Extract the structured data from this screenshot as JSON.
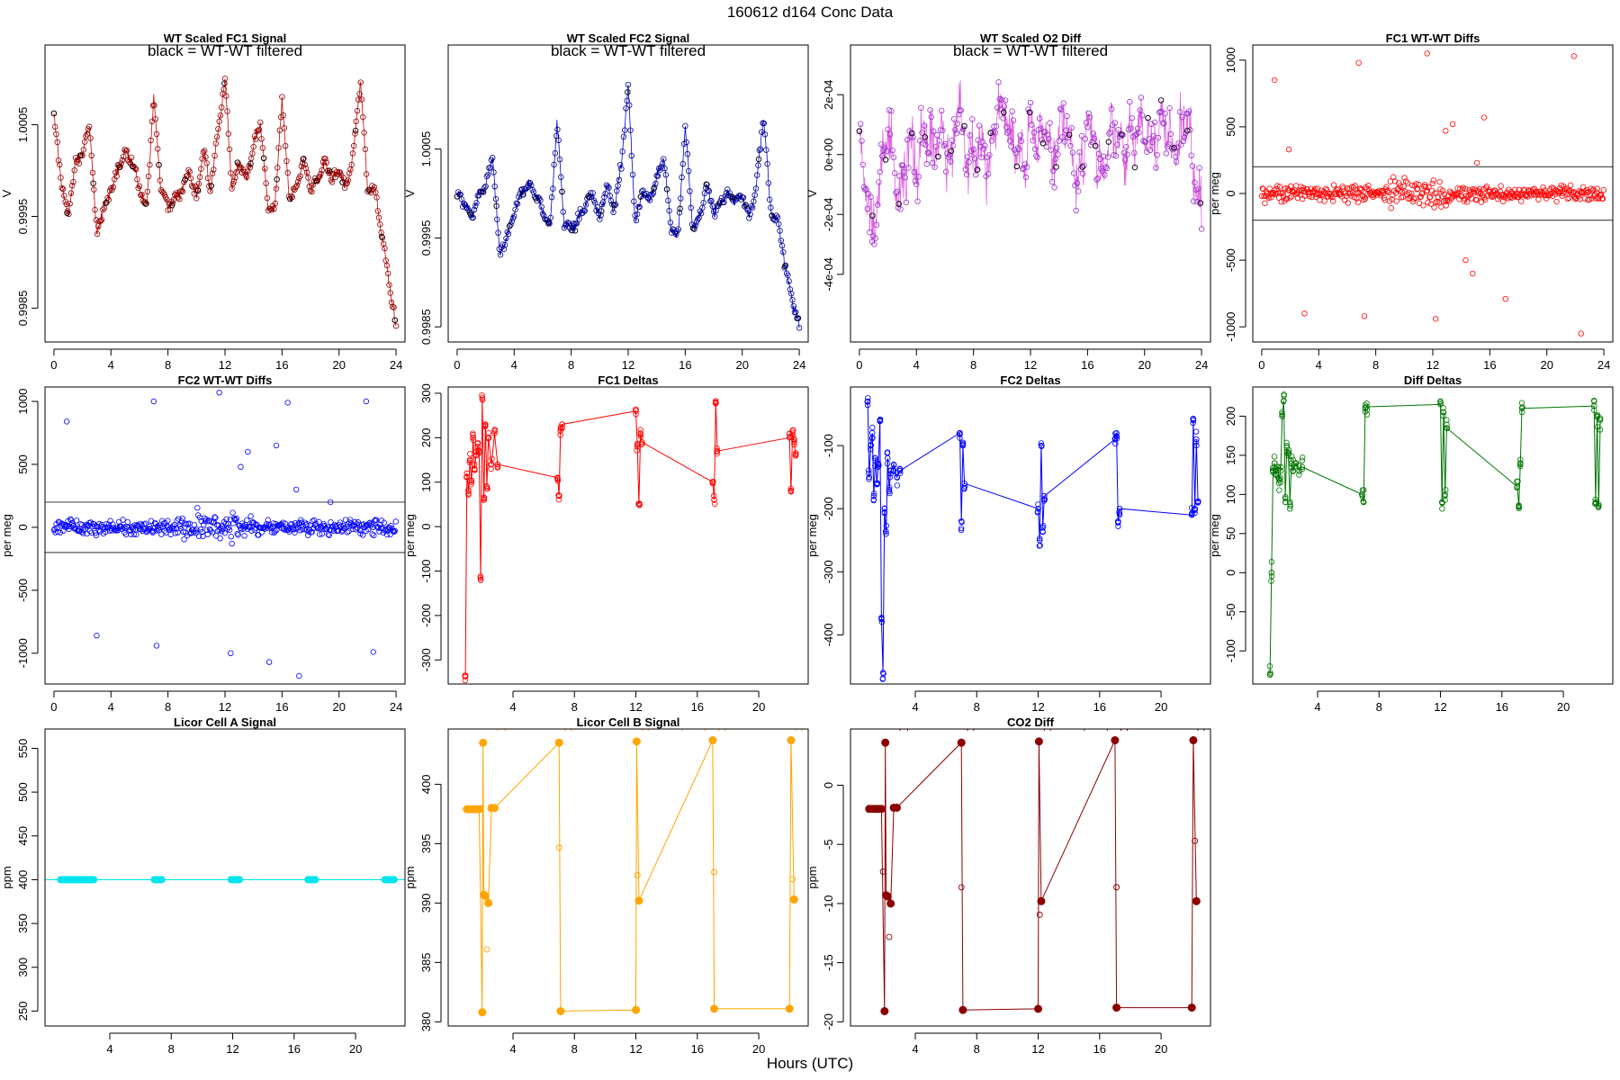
{
  "figure": {
    "title": "160612    d164    Conc Data",
    "xlabel": "Hours (UTC)"
  },
  "chart_data": [
    {
      "type": "line",
      "title": "WT Scaled FC1 Signal",
      "annotation": "black = WT-WT filtered",
      "xlabel": "",
      "ylabel": "V",
      "xlim": [
        -0.5,
        24.5
      ],
      "ylim": [
        0.99815,
        1.00135
      ],
      "xticks": [
        0,
        4,
        8,
        12,
        16,
        20,
        24
      ],
      "yticks": [
        0.9985,
        0.9995,
        1.0005
      ],
      "ytick_labels": [
        "0.9985",
        "0.9995",
        "1.0005"
      ],
      "color": "#cc0000",
      "marker_color": "#8b0000",
      "series": [
        {
          "name": "FC1 signal",
          "x": [
            0,
            0.5,
            1,
            1.5,
            2,
            2.5,
            3,
            3.5,
            4,
            4.5,
            5,
            5.5,
            6,
            6.5,
            7,
            7.5,
            8,
            8.5,
            9,
            9.5,
            10,
            10.5,
            11,
            11.5,
            12,
            12.5,
            13,
            13.5,
            14,
            14.5,
            15,
            15.5,
            16,
            16.5,
            17,
            17.5,
            18,
            18.5,
            19,
            19.5,
            20,
            20.5,
            21,
            21.5,
            22,
            22.5,
            23,
            23.5,
            24
          ],
          "values": [
            1.0006,
            0.9999,
            0.9995,
            1.0001,
            1.0002,
            1.0005,
            0.9993,
            0.9996,
            0.9998,
            1.0,
            1.0002,
            1.0001,
            0.9998,
            0.9996,
            1.0008,
            0.9998,
            0.9996,
            0.9997,
            0.9998,
            1.0,
            0.9997,
            1.0002,
            0.9998,
            1.0004,
            1.001,
            0.9998,
            1.0001,
            0.9999,
            1.0003,
            1.0005,
            0.9996,
            0.9996,
            1.0008,
            0.9997,
            0.9998,
            1.0001,
            0.9998,
            0.9999,
            1.0001,
            0.9999,
            1.0,
            0.9998,
            1.0002,
            1.001,
            0.9998,
            0.9998,
            0.9993,
            0.9988,
            0.9983
          ]
        }
      ]
    },
    {
      "type": "line",
      "title": "WT Scaled FC2 Signal",
      "annotation": "black = WT-WT filtered",
      "xlabel": "",
      "ylabel": "V",
      "xlim": [
        -0.5,
        24.5
      ],
      "ylim": [
        0.99835,
        1.00165
      ],
      "xticks": [
        0,
        4,
        8,
        12,
        16,
        20,
        24
      ],
      "yticks": [
        0.9985,
        0.9995,
        1.0005
      ],
      "ytick_labels": [
        "0.9985",
        "0.9995",
        "1.0005"
      ],
      "color": "#0000cc",
      "marker_color": "#00008b",
      "series": [
        {
          "name": "FC2 signal",
          "x": [
            0,
            0.5,
            1,
            1.5,
            2,
            2.5,
            3,
            3.5,
            4,
            4.5,
            5,
            5.5,
            6,
            6.5,
            7,
            7.5,
            8,
            8.5,
            9,
            9.5,
            10,
            10.5,
            11,
            11.5,
            12,
            12.5,
            13,
            13.5,
            14,
            14.5,
            15,
            15.5,
            16,
            16.5,
            17,
            17.5,
            18,
            18.5,
            19,
            19.5,
            20,
            20.5,
            21,
            21.5,
            22,
            22.5,
            23,
            23.5,
            24
          ],
          "values": [
            1.0,
            0.9999,
            0.9997,
            1.0,
            1.0001,
            1.0004,
            0.9993,
            0.9995,
            0.9998,
            1.0,
            1.0001,
            1.0,
            0.9998,
            0.9996,
            1.0008,
            0.9997,
            0.9996,
            0.9997,
            0.9999,
            1.0,
            0.9997,
            1.0001,
            0.9998,
            1.0003,
            1.0012,
            0.9997,
            1.0,
            0.9999,
            1.0002,
            1.0004,
            0.9996,
            0.9995,
            1.0008,
            0.9996,
            0.9997,
            1.0001,
            0.9998,
            0.9999,
            1.0,
            0.9999,
            1.0,
            0.9997,
            1.0001,
            1.0009,
            0.9998,
            0.9997,
            0.9992,
            0.9988,
            0.9985
          ]
        }
      ]
    },
    {
      "type": "line",
      "title": "WT Scaled O2 Diff",
      "annotation": "black = WT-WT filtered",
      "xlabel": "",
      "ylabel": "V",
      "xlim": [
        -0.5,
        24.5
      ],
      "ylim": [
        -0.00062,
        0.00036
      ],
      "xticks": [
        0,
        4,
        8,
        12,
        16,
        20,
        24
      ],
      "yticks": [
        -0.0004,
        -0.0002,
        0,
        0.0002
      ],
      "ytick_labels": [
        "-4e-04",
        "-2e-04",
        "0e+00",
        "2e-04"
      ],
      "color": "#e066e0",
      "marker_color": "#9932cc",
      "series": [
        {
          "name": "O2 diff",
          "x": [
            0,
            0.5,
            1,
            1.5,
            2,
            2.5,
            3,
            3.5,
            4,
            4.5,
            5,
            5.5,
            6,
            6.5,
            7,
            7.5,
            8,
            8.5,
            9,
            9.5,
            10,
            10.5,
            11,
            11.5,
            12,
            12.5,
            13,
            13.5,
            14,
            14.5,
            15,
            15.5,
            16,
            16.5,
            17,
            17.5,
            18,
            18.5,
            19,
            19.5,
            20,
            20.5,
            21,
            21.5,
            22,
            22.5,
            23,
            23.5,
            24
          ],
          "values": [
            5e-05,
            -0.00015,
            -0.00025,
            -5e-05,
            0.00012,
            -0.0001,
            -0.00012,
            5e-05,
            -5e-05,
            8e-05,
            2e-05,
            6e-05,
            3e-05,
            -5e-05,
            0.0002,
            -3e-05,
            0.0,
            5e-05,
            -5e-05,
            0.00012,
            0.00018,
            8e-05,
            2e-05,
            -5e-05,
            8e-05,
            5e-05,
            0.00012,
            -2e-05,
            5e-05,
            0.00015,
            -5e-05,
            -8e-05,
            0.00012,
            2e-05,
            -5e-05,
            5e-05,
            8e-05,
            -2e-05,
            5e-05,
            8e-05,
            0.0001,
            2e-05,
            0.0001,
            0.00012,
            -2e-05,
            5e-05,
            0.00015,
            -8e-05,
            -0.00022
          ]
        }
      ]
    },
    {
      "type": "scatter",
      "title": "FC1 WT-WT Diffs",
      "xlabel": "",
      "ylabel": "per meg",
      "xlim": [
        -0.5,
        24.5
      ],
      "ylim": [
        -1100,
        1100
      ],
      "xticks": [
        0,
        4,
        8,
        12,
        16,
        20,
        24
      ],
      "yticks": [
        -1000,
        -500,
        0,
        500,
        1000
      ],
      "hlines": [
        200,
        -200
      ],
      "color": "#ff0000",
      "band": {
        "amplitude": 90
      },
      "outliers": {
        "x": [
          0.9,
          1.9,
          3,
          6.8,
          7.2,
          11.6,
          12.2,
          12.9,
          13.4,
          14.3,
          14.8,
          15.1,
          15.6,
          17.1,
          21.9,
          22.4
        ],
        "values": [
          850,
          330,
          -900,
          980,
          -920,
          1050,
          -940,
          470,
          520,
          -500,
          -600,
          230,
          570,
          -790,
          1030,
          -1050
        ]
      }
    },
    {
      "type": "scatter",
      "title": "FC2 WT-WT Diffs",
      "xlabel": "",
      "ylabel": "per meg",
      "xlim": [
        -0.5,
        24.5
      ],
      "ylim": [
        -1230,
        1100
      ],
      "xticks": [
        0,
        4,
        8,
        12,
        16,
        20,
        24
      ],
      "yticks": [
        -1000,
        -500,
        0,
        500,
        1000
      ],
      "hlines": [
        200,
        -200
      ],
      "color": "#0000ff",
      "band": {
        "amplitude": 90
      },
      "outliers": {
        "x": [
          0.9,
          3,
          7,
          7.2,
          11.6,
          12.4,
          13.1,
          13.6,
          15.1,
          15.6,
          16.4,
          17,
          17.2,
          19.4,
          21.9,
          22.4
        ],
        "values": [
          840,
          -860,
          1000,
          -940,
          1070,
          -1000,
          480,
          600,
          -1070,
          650,
          990,
          300,
          -1180,
          200,
          1000,
          -990
        ]
      }
    },
    {
      "type": "line",
      "title": "FC1 Deltas",
      "xlabel": "",
      "ylabel": "per meg",
      "xlim": [
        -0.1,
        23.1
      ],
      "ylim": [
        -350,
        310
      ],
      "xticks": [
        4,
        8,
        12,
        16,
        20
      ],
      "yticks": [
        -300,
        -200,
        -100,
        0,
        100,
        200,
        300
      ],
      "color": "#ff0000",
      "series": [
        {
          "name": "FC1 delta",
          "x": [
            0.9,
            1.0,
            1.1,
            1.2,
            1.3,
            1.4,
            1.5,
            1.6,
            1.7,
            1.8,
            1.9,
            2.0,
            2.1,
            2.2,
            2.3,
            2.4,
            2.6,
            2.8,
            3.0,
            6.9,
            7.0,
            7.1,
            7.2,
            12.0,
            12.1,
            12.2,
            12.3,
            12.4,
            17.0,
            17.1,
            17.2,
            17.3,
            22.0,
            22.1,
            22.2,
            22.3,
            22.4
          ],
          "values": [
            -335,
            120,
            80,
            150,
            100,
            200,
            130,
            160,
            180,
            170,
            -120,
            290,
            60,
            230,
            90,
            200,
            140,
            210,
            140,
            110,
            70,
            220,
            230,
            260,
            180,
            50,
            210,
            190,
            100,
            60,
            280,
            170,
            200,
            80,
            210,
            190,
            160
          ]
        }
      ]
    },
    {
      "type": "line",
      "title": "FC2 Deltas",
      "xlabel": "",
      "ylabel": "per meg",
      "xlim": [
        -0.1,
        23.1
      ],
      "ylim": [
        -475,
        -10
      ],
      "xticks": [
        4,
        8,
        12,
        16,
        20
      ],
      "yticks": [
        -400,
        -300,
        -200,
        -100
      ],
      "color": "#0000ff",
      "series": [
        {
          "name": "FC2 delta",
          "x": [
            0.9,
            1.0,
            1.1,
            1.2,
            1.3,
            1.4,
            1.5,
            1.6,
            1.7,
            1.8,
            1.9,
            2.0,
            2.1,
            2.2,
            2.3,
            2.4,
            2.6,
            2.8,
            3.0,
            6.9,
            7.0,
            7.1,
            7.2,
            12.0,
            12.1,
            12.2,
            12.3,
            12.4,
            17.0,
            17.1,
            17.2,
            17.3,
            22.0,
            22.1,
            22.2,
            22.3,
            22.4
          ],
          "values": [
            -30,
            -150,
            -100,
            -80,
            -180,
            -120,
            -160,
            -130,
            -60,
            -375,
            -460,
            -200,
            -240,
            -120,
            -170,
            -140,
            -130,
            -150,
            -140,
            -80,
            -220,
            -100,
            -160,
            -200,
            -250,
            -100,
            -230,
            -180,
            -90,
            -80,
            -220,
            -200,
            -210,
            -60,
            -200,
            -90,
            -190
          ]
        }
      ]
    },
    {
      "type": "line",
      "title": "Diff Deltas",
      "xlabel": "",
      "ylabel": "per meg",
      "xlim": [
        -0.1,
        23.1
      ],
      "ylim": [
        -140,
        235
      ],
      "xticks": [
        4,
        8,
        12,
        16,
        20
      ],
      "yticks": [
        -100,
        -50,
        0,
        50,
        100,
        150,
        200
      ],
      "color": "#007700",
      "series": [
        {
          "name": "diff delta",
          "x": [
            0.9,
            1.0,
            1.1,
            1.2,
            1.3,
            1.4,
            1.5,
            1.6,
            1.7,
            1.8,
            1.9,
            2.0,
            2.1,
            2.2,
            2.3,
            2.4,
            2.6,
            2.8,
            3.0,
            6.9,
            7.0,
            7.1,
            7.2,
            12.0,
            12.1,
            12.2,
            12.3,
            12.4,
            17.0,
            17.1,
            17.2,
            17.3,
            22.0,
            22.1,
            22.2,
            22.3,
            22.4
          ],
          "values": [
            -130,
            0,
            130,
            140,
            125,
            135,
            120,
            130,
            200,
            220,
            95,
            160,
            150,
            90,
            140,
            130,
            140,
            130,
            135,
            100,
            90,
            210,
            212,
            215,
            90,
            205,
            100,
            185,
            110,
            85,
            140,
            210,
            213,
            90,
            200,
            85,
            195
          ]
        }
      ]
    },
    {
      "type": "line",
      "title": "Licor Cell A Signal",
      "xlabel": "",
      "ylabel": "ppm",
      "xlim": [
        -0.1,
        23.1
      ],
      "ylim": [
        235,
        570
      ],
      "xticks": [
        4,
        8,
        12,
        16,
        20
      ],
      "yticks": [
        250,
        300,
        350,
        400,
        450,
        500,
        550
      ],
      "color": "#00e5ee",
      "constant": 400,
      "clusters": [
        [
          0.8,
          3.0
        ],
        [
          6.9,
          7.4
        ],
        [
          11.9,
          12.5
        ],
        [
          16.9,
          17.4
        ],
        [
          21.9,
          22.5
        ]
      ]
    },
    {
      "type": "line",
      "title": "Licor Cell B Signal",
      "xlabel": "",
      "ylabel": "ppm",
      "xlim": [
        -0.1,
        23.1
      ],
      "ylim": [
        379.8,
        404.5
      ],
      "xticks": [
        4,
        8,
        12,
        16,
        20
      ],
      "yticks": [
        380,
        385,
        390,
        395,
        400
      ],
      "color": "#ffa500",
      "series": [
        {
          "name": "cell B",
          "x": [
            1.0,
            1.2,
            1.4,
            1.6,
            1.8,
            2.0,
            2.05,
            2.1,
            2.2,
            2.4,
            2.6,
            2.8,
            7.0,
            7.1,
            12.0,
            12.05,
            12.2,
            17.0,
            17.1,
            22.0,
            22.1,
            22.3
          ],
          "values": [
            397.9,
            397.9,
            397.9,
            397.9,
            397.9,
            380.8,
            403.5,
            390.7,
            390.6,
            390.0,
            398.0,
            398.0,
            403.5,
            380.9,
            381.0,
            403.6,
            390.2,
            403.7,
            381.1,
            381.1,
            403.7,
            390.3
          ]
        }
      ]
    },
    {
      "type": "line",
      "title": "CO2 Diff",
      "xlabel": "",
      "ylabel": "ppm",
      "xlim": [
        -0.1,
        23.1
      ],
      "ylim": [
        -20.2,
        4.6
      ],
      "xticks": [
        4,
        8,
        12,
        16,
        20
      ],
      "yticks": [
        -20,
        -15,
        -10,
        -5,
        0
      ],
      "color": "#8b0000",
      "series": [
        {
          "name": "CO2 diff",
          "x": [
            1.0,
            1.2,
            1.4,
            1.6,
            1.8,
            2.0,
            2.05,
            2.1,
            2.2,
            2.4,
            2.6,
            2.8,
            7.0,
            7.1,
            12.0,
            12.05,
            12.2,
            17.0,
            17.1,
            22.0,
            22.1,
            22.3
          ],
          "values": [
            -2.0,
            -2.0,
            -2.0,
            -2.0,
            -2.0,
            -19.1,
            3.6,
            -9.3,
            -9.4,
            -10.0,
            -1.9,
            -1.9,
            3.6,
            -19.0,
            -18.9,
            3.7,
            -9.8,
            3.8,
            -18.8,
            -18.8,
            3.8,
            -9.8
          ]
        }
      ]
    }
  ]
}
